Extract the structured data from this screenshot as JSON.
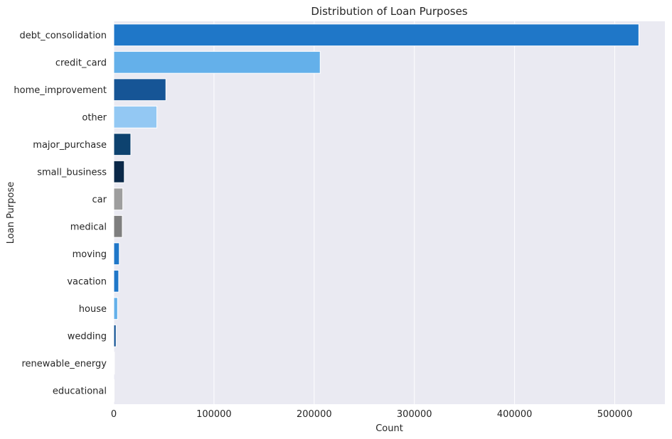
{
  "chart_data": {
    "type": "bar",
    "orientation": "horizontal",
    "title": "Distribution of Loan Purposes",
    "xlabel": "Count",
    "ylabel": "Loan Purpose",
    "xlim": [
      0,
      550000
    ],
    "xticks": [
      0,
      100000,
      200000,
      300000,
      400000,
      500000
    ],
    "grid": true,
    "background": "#eaeaf2",
    "categories": [
      "debt_consolidation",
      "credit_card",
      "home_improvement",
      "other",
      "major_purchase",
      "small_business",
      "car",
      "medical",
      "moving",
      "vacation",
      "house",
      "wedding",
      "renewable_energy",
      "educational"
    ],
    "values": [
      524000,
      206000,
      52000,
      43000,
      17000,
      10500,
      9000,
      8500,
      5500,
      4900,
      3800,
      2300,
      600,
      400
    ],
    "colors": [
      "#1f77c8",
      "#64b0ea",
      "#165596",
      "#93c8f3",
      "#0d426f",
      "#0a2848",
      "#9e9e9e",
      "#7e7e7e",
      "#1f77c8",
      "#1f77c8",
      "#64b0ea",
      "#165596",
      "#93c8f3",
      "#0d426f"
    ]
  }
}
